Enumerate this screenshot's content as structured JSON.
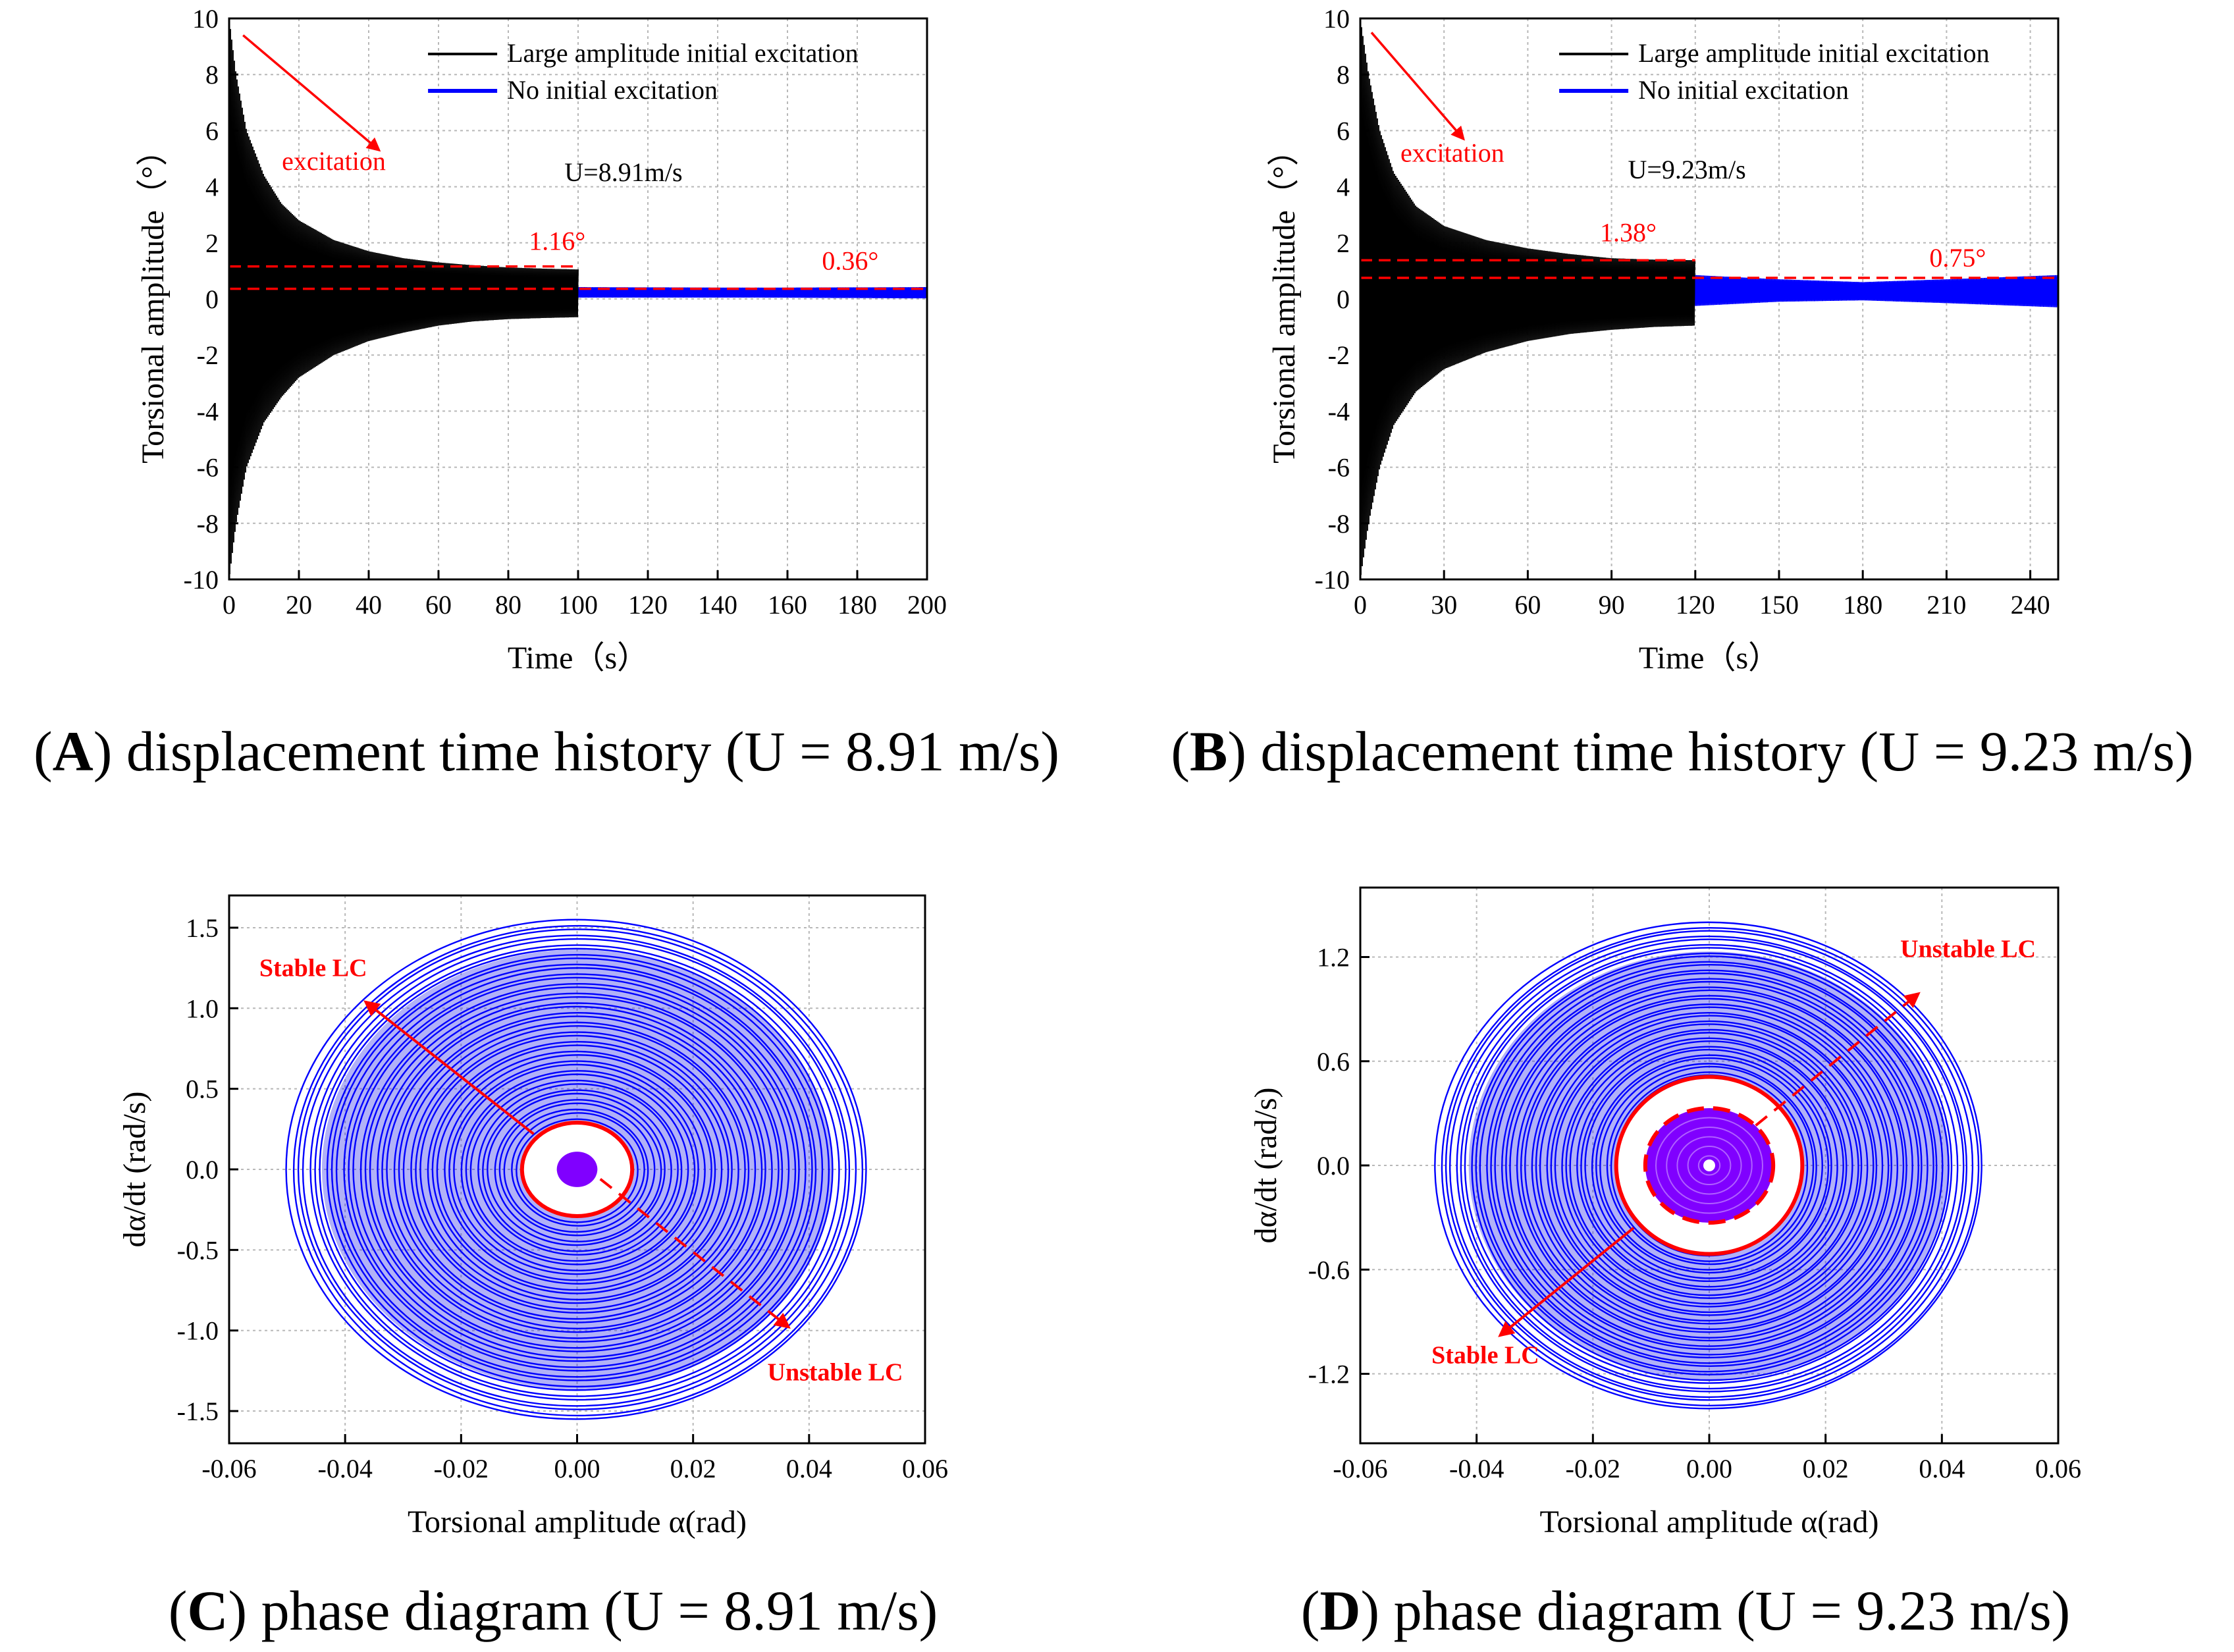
{
  "figure": {
    "panels": [
      {
        "letter": "A",
        "caption": "displacement time history (U = 8.91 m/s)"
      },
      {
        "letter": "B",
        "caption": "displacement time history (U = 9.23 m/s)"
      },
      {
        "letter": "C",
        "caption": "phase diagram (U = 8.91 m/s)"
      },
      {
        "letter": "D",
        "caption": "phase diagram (U = 9.23 m/s)"
      }
    ]
  },
  "colors": {
    "large_excitation": "#000000",
    "no_excitation": "#0000ff",
    "annotation": "#ff0000",
    "inner_fill": "#8000ff",
    "grid": "#b8b8b8"
  },
  "chart_data": [
    {
      "id": "A",
      "type": "line",
      "title": "",
      "xlabel": "Time（s）",
      "ylabel": "Torsional amplitude（°）",
      "xlim": [
        0,
        200
      ],
      "ylim": [
        -10,
        10
      ],
      "xticks": [
        0,
        20,
        40,
        60,
        80,
        100,
        120,
        140,
        160,
        180,
        200
      ],
      "xtick_labels": [
        "0",
        "20",
        "40",
        "60",
        "80",
        "100",
        "120",
        "140",
        "160",
        "180",
        "200"
      ],
      "yticks": [
        -10,
        -8,
        -6,
        -4,
        -2,
        0,
        2,
        4,
        6,
        8,
        10
      ],
      "ytick_labels": [
        "-10",
        "-8",
        "-6",
        "-4",
        "-2",
        "0",
        "2",
        "4",
        "6",
        "8",
        "10"
      ],
      "legend": {
        "position": "top-right",
        "entries": [
          "Large amplitude initial excitation",
          "No initial excitation"
        ]
      },
      "series": [
        {
          "name": "Large amplitude initial excitation",
          "end_time": 100,
          "envelope_upper": [
            [
              0,
              10
            ],
            [
              2,
              8
            ],
            [
              5,
              6
            ],
            [
              10,
              4.4
            ],
            [
              15,
              3.4
            ],
            [
              20,
              2.8
            ],
            [
              30,
              2.1
            ],
            [
              40,
              1.7
            ],
            [
              50,
              1.45
            ],
            [
              60,
              1.3
            ],
            [
              70,
              1.2
            ],
            [
              80,
              1.12
            ],
            [
              90,
              1.08
            ],
            [
              100,
              1.05
            ]
          ],
          "envelope_lower": [
            [
              0,
              -10
            ],
            [
              2,
              -8
            ],
            [
              5,
              -6
            ],
            [
              10,
              -4.4
            ],
            [
              15,
              -3.5
            ],
            [
              20,
              -2.8
            ],
            [
              30,
              -2.0
            ],
            [
              40,
              -1.5
            ],
            [
              50,
              -1.2
            ],
            [
              60,
              -0.95
            ],
            [
              70,
              -0.8
            ],
            [
              80,
              -0.72
            ],
            [
              90,
              -0.68
            ],
            [
              100,
              -0.65
            ]
          ]
        },
        {
          "name": "No initial excitation",
          "end_time": 200,
          "envelope_upper": [
            [
              0,
              0.38
            ],
            [
              50,
              0.4
            ],
            [
              100,
              0.42
            ],
            [
              150,
              0.4
            ],
            [
              200,
              0.42
            ]
          ],
          "envelope_lower": [
            [
              0,
              0.05
            ],
            [
              50,
              0.03
            ],
            [
              100,
              0.05
            ],
            [
              150,
              0.05
            ],
            [
              200,
              0.02
            ]
          ]
        }
      ],
      "reference_lines": [
        {
          "y": 1.16,
          "x_start": 0,
          "x_end": 100
        },
        {
          "y": 0.36,
          "x_start": 0,
          "x_end": 200
        }
      ],
      "annotations": [
        {
          "text": "excitation",
          "x": 30,
          "y": 4.6
        },
        {
          "text": "1.16°",
          "x": 94,
          "y": 1.75
        },
        {
          "text": "0.36°",
          "x": 178,
          "y": 1.05
        },
        {
          "text": "U=8.91m/s",
          "x": 113,
          "y": 4.2
        }
      ],
      "arrow": {
        "from": [
          4,
          9.4
        ],
        "to": [
          43,
          5.3
        ]
      }
    },
    {
      "id": "B",
      "type": "line",
      "title": "",
      "xlabel": "Time（s）",
      "ylabel": "Torsional amplitude（°）",
      "xlim": [
        0,
        250
      ],
      "ylim": [
        -10,
        10
      ],
      "xticks": [
        0,
        30,
        60,
        90,
        120,
        150,
        180,
        210,
        240
      ],
      "xtick_labels": [
        "0",
        "30",
        "60",
        "90",
        "120",
        "150",
        "180",
        "210",
        "240"
      ],
      "yticks": [
        -10,
        -8,
        -6,
        -4,
        -2,
        0,
        2,
        4,
        6,
        8,
        10
      ],
      "ytick_labels": [
        "-10",
        "-8",
        "-6",
        "-4",
        "-2",
        "0",
        "2",
        "4",
        "6",
        "8",
        "10"
      ],
      "legend": {
        "position": "top-right",
        "entries": [
          "Large amplitude initial excitation",
          "No initial excitation"
        ]
      },
      "series": [
        {
          "name": "Large amplitude initial excitation",
          "end_time": 120,
          "envelope_upper": [
            [
              0,
              10
            ],
            [
              3,
              8
            ],
            [
              7,
              6
            ],
            [
              12,
              4.5
            ],
            [
              20,
              3.3
            ],
            [
              30,
              2.6
            ],
            [
              45,
              2.1
            ],
            [
              60,
              1.8
            ],
            [
              75,
              1.6
            ],
            [
              90,
              1.45
            ],
            [
              105,
              1.4
            ],
            [
              120,
              1.38
            ]
          ],
          "envelope_lower": [
            [
              0,
              -10
            ],
            [
              3,
              -8
            ],
            [
              7,
              -6
            ],
            [
              12,
              -4.5
            ],
            [
              20,
              -3.3
            ],
            [
              30,
              -2.5
            ],
            [
              45,
              -1.9
            ],
            [
              60,
              -1.5
            ],
            [
              75,
              -1.25
            ],
            [
              90,
              -1.1
            ],
            [
              105,
              -1.0
            ],
            [
              120,
              -0.95
            ]
          ]
        },
        {
          "name": "No initial excitation",
          "end_time": 250,
          "envelope_upper": [
            [
              0,
              0.5
            ],
            [
              40,
              0.6
            ],
            [
              80,
              0.75
            ],
            [
              120,
              0.85
            ],
            [
              150,
              0.7
            ],
            [
              180,
              0.6
            ],
            [
              210,
              0.7
            ],
            [
              250,
              0.85
            ]
          ],
          "envelope_lower": [
            [
              0,
              0.05
            ],
            [
              40,
              -0.15
            ],
            [
              80,
              -0.25
            ],
            [
              120,
              -0.25
            ],
            [
              150,
              -0.1
            ],
            [
              180,
              -0.05
            ],
            [
              210,
              -0.15
            ],
            [
              250,
              -0.3
            ]
          ]
        }
      ],
      "reference_lines": [
        {
          "y": 1.38,
          "x_start": 0,
          "x_end": 120
        },
        {
          "y": 0.75,
          "x_start": 0,
          "x_end": 250
        }
      ],
      "annotations": [
        {
          "text": "excitation",
          "x": 33,
          "y": 4.9
        },
        {
          "text": "1.38°",
          "x": 96,
          "y": 2.05
        },
        {
          "text": "0.75°",
          "x": 214,
          "y": 1.15
        },
        {
          "text": "U=9.23m/s",
          "x": 117,
          "y": 4.3
        }
      ],
      "arrow": {
        "from": [
          4,
          9.5
        ],
        "to": [
          37,
          5.7
        ]
      }
    },
    {
      "id": "C",
      "type": "line",
      "title": "",
      "xlabel": "Torsional amplitude  α(rad)",
      "ylabel": "dα/dt (rad/s)",
      "xlim": [
        -0.06,
        0.06
      ],
      "ylim": [
        -1.7,
        1.7
      ],
      "xticks": [
        -0.06,
        -0.04,
        -0.02,
        0.0,
        0.02,
        0.04,
        0.06
      ],
      "xtick_labels": [
        "-0.06",
        "-0.04",
        "-0.02",
        "0.00",
        "0.02",
        "0.04",
        "0.06"
      ],
      "yticks": [
        -1.5,
        -1.0,
        -0.5,
        0.0,
        0.5,
        1.0,
        1.5
      ],
      "ytick_labels": [
        "-1.5",
        "-1.0",
        "-0.5",
        "0.0",
        "0.5",
        "1.0",
        "1.5"
      ],
      "spiral": {
        "outer_rx": 0.05,
        "outer_ry": 1.55,
        "inner_rx": 0.0095,
        "inner_ry": 0.29,
        "rings": 42
      },
      "stable_lc": {
        "rx": 0.0095,
        "ry": 0.29
      },
      "inner_blob": {
        "rx": 0.0035,
        "ry": 0.11
      },
      "annotations": [
        {
          "text": "Stable LC",
          "x": -0.0455,
          "y": 1.2
        },
        {
          "text": "Unstable LC",
          "x": 0.0445,
          "y": -1.31
        }
      ],
      "arrows": [
        {
          "style": "solid",
          "from": [
            -0.0075,
            0.22
          ],
          "to": [
            -0.0365,
            1.04
          ]
        },
        {
          "style": "dashed",
          "from": [
            0.004,
            -0.06
          ],
          "to": [
            0.0365,
            -0.98
          ]
        }
      ]
    },
    {
      "id": "D",
      "type": "line",
      "title": "",
      "xlabel": "Torsional amplitude  α(rad)",
      "ylabel": "dα/dt (rad/s)",
      "xlim": [
        -0.06,
        0.06
      ],
      "ylim": [
        -1.6,
        1.6
      ],
      "xticks": [
        -0.06,
        -0.04,
        -0.02,
        0.0,
        0.02,
        0.04,
        0.06
      ],
      "xtick_labels": [
        "-0.06",
        "-0.04",
        "-0.02",
        "0.00",
        "0.02",
        "0.04",
        "0.06"
      ],
      "yticks": [
        -1.2,
        -0.6,
        0.0,
        0.6,
        1.2
      ],
      "ytick_labels": [
        "-1.2",
        "-0.6",
        "0.0",
        "0.6",
        "1.2"
      ],
      "spiral": {
        "outer_rx": 0.047,
        "outer_ry": 1.4,
        "inner_rx": 0.016,
        "inner_ry": 0.52,
        "rings": 36
      },
      "stable_lc": {
        "rx": 0.016,
        "ry": 0.51
      },
      "unstable_lc": {
        "rx": 0.011,
        "ry": 0.33
      },
      "inner_blob": {
        "rx": 0.011,
        "ry": 0.33
      },
      "annotations": [
        {
          "text": "Unstable LC",
          "x": 0.0445,
          "y": 1.2
        },
        {
          "text": "Stable LC",
          "x": -0.0385,
          "y": -1.14
        }
      ],
      "arrows": [
        {
          "style": "dashed",
          "from": [
            0.008,
            0.23
          ],
          "to": [
            0.036,
            0.99
          ]
        },
        {
          "style": "solid",
          "from": [
            -0.013,
            -0.36
          ],
          "to": [
            -0.036,
            -0.98
          ]
        }
      ]
    }
  ]
}
